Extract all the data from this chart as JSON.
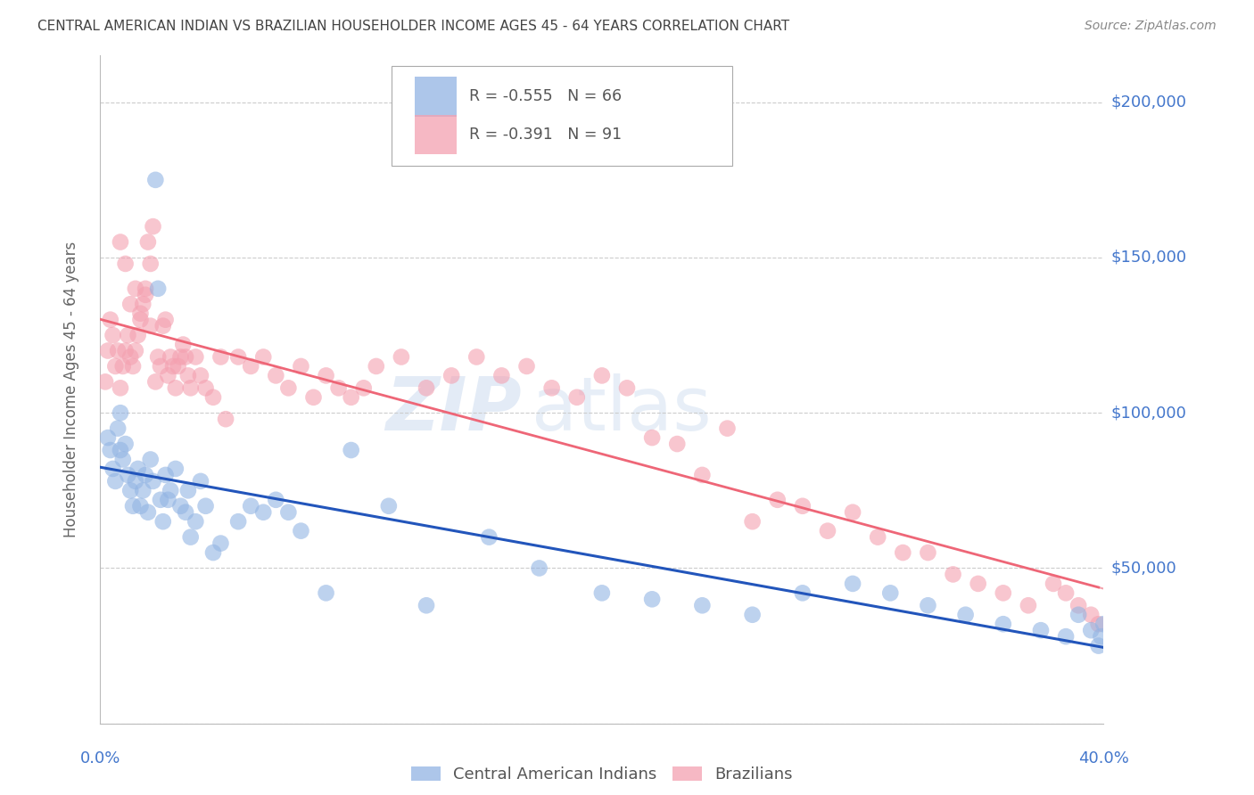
{
  "title": "CENTRAL AMERICAN INDIAN VS BRAZILIAN HOUSEHOLDER INCOME AGES 45 - 64 YEARS CORRELATION CHART",
  "source": "Source: ZipAtlas.com",
  "ylabel": "Householder Income Ages 45 - 64 years",
  "legend_blue_r": "R = -0.555",
  "legend_blue_n": "N = 66",
  "legend_pink_r": "R = -0.391",
  "legend_pink_n": "N = 91",
  "legend_blue_label": "Central American Indians",
  "legend_pink_label": "Brazilians",
  "blue_color": "#92B4E3",
  "pink_color": "#F4A0B0",
  "line_blue_color": "#2255BB",
  "line_pink_color": "#EE6677",
  "bg_color": "#FFFFFF",
  "grid_color": "#CCCCCC",
  "yaxis_label_color": "#4477CC",
  "title_color": "#444444",
  "source_color": "#888888",
  "watermark_zip_color": "#C8D8EE",
  "watermark_atlas_color": "#D0DFF0",
  "xmin": 0.0,
  "xmax": 0.4,
  "ymin": 0,
  "ymax": 215000,
  "yticks": [
    0,
    50000,
    100000,
    150000,
    200000
  ],
  "blue_x": [
    0.003,
    0.004,
    0.005,
    0.006,
    0.007,
    0.008,
    0.008,
    0.009,
    0.01,
    0.011,
    0.012,
    0.013,
    0.014,
    0.015,
    0.016,
    0.017,
    0.018,
    0.019,
    0.02,
    0.021,
    0.022,
    0.023,
    0.024,
    0.025,
    0.026,
    0.027,
    0.028,
    0.03,
    0.032,
    0.034,
    0.035,
    0.036,
    0.038,
    0.04,
    0.042,
    0.045,
    0.048,
    0.055,
    0.06,
    0.065,
    0.07,
    0.075,
    0.08,
    0.09,
    0.1,
    0.115,
    0.13,
    0.155,
    0.175,
    0.2,
    0.22,
    0.24,
    0.26,
    0.28,
    0.3,
    0.315,
    0.33,
    0.345,
    0.36,
    0.375,
    0.385,
    0.39,
    0.395,
    0.398,
    0.399,
    0.4
  ],
  "blue_y": [
    92000,
    88000,
    82000,
    78000,
    95000,
    100000,
    88000,
    85000,
    90000,
    80000,
    75000,
    70000,
    78000,
    82000,
    70000,
    75000,
    80000,
    68000,
    85000,
    78000,
    175000,
    140000,
    72000,
    65000,
    80000,
    72000,
    75000,
    82000,
    70000,
    68000,
    75000,
    60000,
    65000,
    78000,
    70000,
    55000,
    58000,
    65000,
    70000,
    68000,
    72000,
    68000,
    62000,
    42000,
    88000,
    70000,
    38000,
    60000,
    50000,
    42000,
    40000,
    38000,
    35000,
    42000,
    45000,
    42000,
    38000,
    35000,
    32000,
    30000,
    28000,
    35000,
    30000,
    25000,
    28000,
    32000
  ],
  "pink_x": [
    0.002,
    0.003,
    0.004,
    0.005,
    0.006,
    0.007,
    0.008,
    0.009,
    0.01,
    0.011,
    0.012,
    0.013,
    0.014,
    0.015,
    0.016,
    0.017,
    0.018,
    0.019,
    0.02,
    0.021,
    0.022,
    0.023,
    0.024,
    0.025,
    0.026,
    0.027,
    0.028,
    0.029,
    0.03,
    0.031,
    0.032,
    0.033,
    0.034,
    0.035,
    0.036,
    0.038,
    0.04,
    0.042,
    0.045,
    0.048,
    0.05,
    0.055,
    0.06,
    0.065,
    0.07,
    0.075,
    0.08,
    0.085,
    0.09,
    0.095,
    0.1,
    0.105,
    0.11,
    0.12,
    0.13,
    0.14,
    0.15,
    0.16,
    0.17,
    0.18,
    0.19,
    0.2,
    0.21,
    0.22,
    0.23,
    0.24,
    0.25,
    0.26,
    0.27,
    0.28,
    0.29,
    0.3,
    0.31,
    0.32,
    0.33,
    0.34,
    0.35,
    0.36,
    0.37,
    0.38,
    0.385,
    0.39,
    0.395,
    0.398,
    0.008,
    0.01,
    0.012,
    0.014,
    0.016,
    0.018,
    0.02
  ],
  "pink_y": [
    110000,
    120000,
    130000,
    125000,
    115000,
    120000,
    108000,
    115000,
    120000,
    125000,
    118000,
    115000,
    120000,
    125000,
    130000,
    135000,
    140000,
    155000,
    148000,
    160000,
    110000,
    118000,
    115000,
    128000,
    130000,
    112000,
    118000,
    115000,
    108000,
    115000,
    118000,
    122000,
    118000,
    112000,
    108000,
    118000,
    112000,
    108000,
    105000,
    118000,
    98000,
    118000,
    115000,
    118000,
    112000,
    108000,
    115000,
    105000,
    112000,
    108000,
    105000,
    108000,
    115000,
    118000,
    108000,
    112000,
    118000,
    112000,
    115000,
    108000,
    105000,
    112000,
    108000,
    92000,
    90000,
    80000,
    95000,
    65000,
    72000,
    70000,
    62000,
    68000,
    60000,
    55000,
    55000,
    48000,
    45000,
    42000,
    38000,
    45000,
    42000,
    38000,
    35000,
    32000,
    155000,
    148000,
    135000,
    140000,
    132000,
    138000,
    128000
  ]
}
